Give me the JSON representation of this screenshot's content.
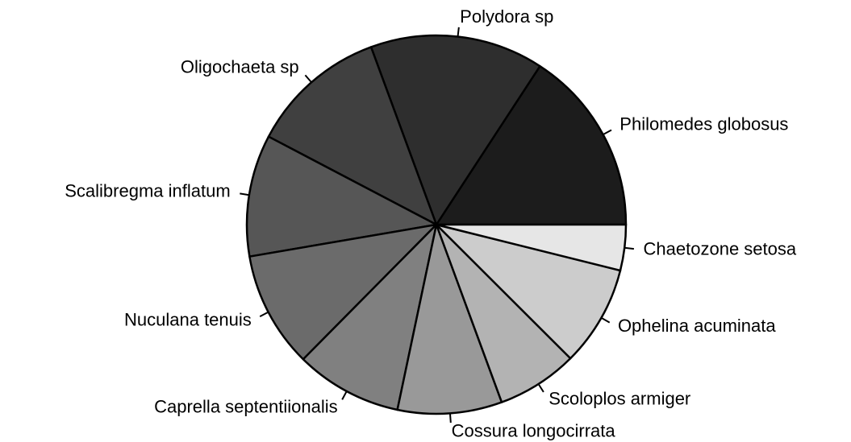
{
  "chart_data": {
    "type": "pie",
    "categories": [
      "Philomedes globosus",
      "Polydora sp",
      "Oligochaeta sp",
      "Scalibregma inflatum",
      "Nuculana tenuis",
      "Caprella septentiionalis",
      "Cossura longocirrata",
      "Scoloplos armiger",
      "Ophelina acuminata",
      "Chaetozone setosa"
    ],
    "values": [
      15.8,
      14.8,
      11.7,
      10.4,
      9.9,
      9.1,
      8.9,
      6.9,
      8.6,
      3.9
    ],
    "colors": [
      "#1c1c1c",
      "#2e2e2e",
      "#404040",
      "#565656",
      "#6b6b6b",
      "#808080",
      "#999999",
      "#b3b3b3",
      "#cccccc",
      "#e6e6e6"
    ]
  }
}
